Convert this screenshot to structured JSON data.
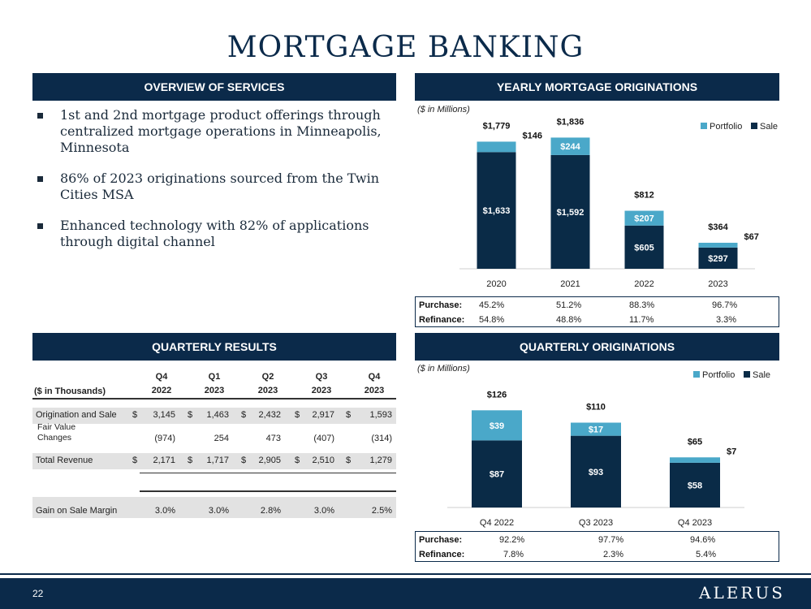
{
  "title": "MORTGAGE BANKING",
  "overview": {
    "header": "OVERVIEW OF SERVICES",
    "bullets": [
      "1st and 2nd mortgage product offerings through centralized mortgage operations in Minneapolis, Minnesota",
      "86% of 2023 originations sourced from the Twin Cities MSA",
      "Enhanced technology with 82% of applications through digital channel"
    ]
  },
  "yearly": {
    "header": "YEARLY MORTGAGE ORIGINATIONS",
    "unit_note": "($ in Millions)",
    "legend": [
      "Portfolio",
      "Sale"
    ],
    "purchase_label": "Purchase:",
    "refinance_label": "Refinance:",
    "purchase": [
      "45.2%",
      "51.2%",
      "88.3%",
      "96.7%"
    ],
    "refinance": [
      "54.8%",
      "48.8%",
      "11.7%",
      "3.3%"
    ]
  },
  "quarterly_orig": {
    "header": "QUARTERLY ORIGINATIONS",
    "unit_note": "($ in Millions)",
    "legend": [
      "Portfolio",
      "Sale"
    ],
    "purchase_label": "Purchase:",
    "refinance_label": "Refinance:",
    "purchase": [
      "92.2%",
      "97.7%",
      "94.6%"
    ],
    "refinance": [
      "7.8%",
      "2.3%",
      "5.4%"
    ]
  },
  "quarterly_results": {
    "header": "QUARTERLY RESULTS",
    "unit_label": "($ in Thousands)",
    "columns": [
      {
        "q": "Q4",
        "y": "2022"
      },
      {
        "q": "Q1",
        "y": "2023"
      },
      {
        "q": "Q2",
        "y": "2023"
      },
      {
        "q": "Q3",
        "y": "2023"
      },
      {
        "q": "Q4",
        "y": "2023"
      }
    ],
    "rows": [
      {
        "label": "Origination and Sale",
        "dollar": true,
        "values": [
          "3,145",
          "1,463",
          "2,432",
          "2,917",
          "1,593"
        ]
      },
      {
        "label": "Fair Value Changes",
        "dollar": false,
        "values": [
          "(974)",
          "254",
          "473",
          "(407)",
          "(314)"
        ]
      },
      {
        "label": "Total Revenue",
        "dollar": true,
        "values": [
          "2,171",
          "1,717",
          "2,905",
          "2,510",
          "1,279"
        ]
      },
      {
        "label": "Gain on Sale Margin",
        "dollar": false,
        "values": [
          "3.0%",
          "3.0%",
          "2.8%",
          "3.0%",
          "2.5%"
        ]
      }
    ]
  },
  "colors": {
    "navy": "#0b2a4a",
    "sale": "#0a2b47",
    "portfolio": "#4aa8c9"
  },
  "footer": {
    "page_number": "22",
    "logo": "ALERUS"
  },
  "chart_data": [
    {
      "type": "bar",
      "stacked": true,
      "title": "YEARLY MORTGAGE ORIGINATIONS",
      "categories": [
        "2020",
        "2021",
        "2022",
        "2023"
      ],
      "series": [
        {
          "name": "Sale",
          "values": [
            1633,
            1592,
            605,
            297
          ],
          "labels": [
            "$1,633",
            "$1,592",
            "$605",
            "$297"
          ]
        },
        {
          "name": "Portfolio",
          "values": [
            146,
            244,
            207,
            67
          ],
          "labels": [
            "$146",
            "$244",
            "$207",
            "$67"
          ]
        }
      ],
      "totals": [
        "$1,779",
        "$1,836",
        "$812",
        "$364"
      ],
      "ylim": [
        0,
        2000
      ],
      "legend": "top-right",
      "grid": false
    },
    {
      "type": "bar",
      "stacked": true,
      "title": "QUARTERLY ORIGINATIONS",
      "categories": [
        "Q4 2022",
        "Q3 2023",
        "Q4 2023"
      ],
      "series": [
        {
          "name": "Sale",
          "values": [
            87,
            93,
            58
          ],
          "labels": [
            "$87",
            "$93",
            "$58"
          ]
        },
        {
          "name": "Portfolio",
          "values": [
            39,
            17,
            7
          ],
          "labels": [
            "$39",
            "$17",
            "$7"
          ]
        }
      ],
      "totals": [
        "$126",
        "$110",
        "$65"
      ],
      "ylim": [
        0,
        140
      ],
      "legend": "top-right",
      "grid": false
    }
  ]
}
